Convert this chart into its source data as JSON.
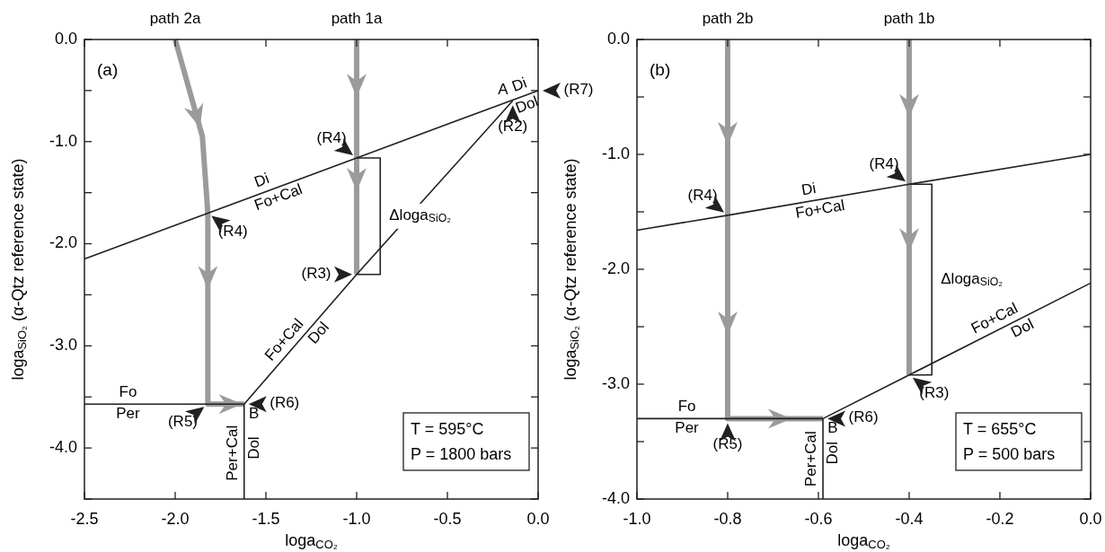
{
  "chart_data": [
    {
      "type": "line",
      "xlabel": "loga$_{CO₂}$",
      "ylabel": "loga$_{SiO₂}$ (α-Qtz reference state)",
      "xlim": [
        -2.5,
        0
      ],
      "ylim": [
        -4.5,
        0
      ],
      "xticks": [
        {
          "value": -2.5,
          "label": "-2.5"
        },
        {
          "value": -2,
          "label": "-2.0"
        },
        {
          "value": -1.5,
          "label": "-1.5"
        },
        {
          "value": -1,
          "label": "-1.0"
        },
        {
          "value": -0.5,
          "label": "-0.5"
        },
        {
          "value": 0,
          "label": "0.0"
        }
      ],
      "yticks": [
        {
          "value": 0,
          "label": "0.0"
        },
        {
          "value": -0.5,
          "label": null
        },
        {
          "value": -1,
          "label": "-1.0"
        },
        {
          "value": -1.5,
          "label": null
        },
        {
          "value": -2,
          "label": "-2.0"
        },
        {
          "value": -2.5,
          "label": null
        },
        {
          "value": -3,
          "label": "-3.0"
        },
        {
          "value": -3.5,
          "label": null
        },
        {
          "value": -4,
          "label": "-4.0"
        },
        {
          "value": -4.5,
          "label": null
        }
      ],
      "series": [
        {
          "color": "#231f20",
          "x": [
            -2.5,
            -1.82,
            -1.0,
            0.0
          ],
          "values": [
            -2.15,
            -1.7,
            -1.16,
            -0.5
          ]
        },
        {
          "color": "#231f20",
          "x": [
            -1.62,
            -1.0,
            -0.14
          ],
          "values": [
            -3.57,
            -2.3,
            -0.6
          ]
        },
        {
          "color": "#231f20",
          "x": [
            -2.5,
            -1.62
          ],
          "values": [
            -3.57,
            -3.57
          ]
        },
        {
          "color": "#231f20",
          "x": [
            -1.62,
            -1.62
          ],
          "values": [
            -3.57,
            -4.5
          ]
        },
        {
          "color": "#9a9b9d",
          "x": [
            -1.0,
            -1.0,
            -1.0
          ],
          "values": [
            0,
            -1.16,
            -2.3
          ]
        },
        {
          "color": "#9a9b9d",
          "x": [
            -2.0,
            -1.85,
            -1.82,
            -1.82,
            -1.62
          ],
          "values": [
            0,
            -0.95,
            -1.7,
            -3.57,
            -3.57
          ]
        },
        {
          "color": "#231f20",
          "x": [
            -1.0,
            -0.87,
            -0.87,
            -1.0
          ],
          "values": [
            -1.16,
            -1.16,
            -2.3,
            -2.3
          ]
        }
      ],
      "annotations": [
        "(a)",
        "T = 595°C",
        "P = 1800 bars",
        {
          "text": "path 2a",
          "x": -2.0
        },
        {
          "text": "path 1a",
          "x": -1.0
        },
        {
          "text": "(R2)",
          "x": -0.14,
          "y": -0.6
        },
        {
          "text": "A",
          "x": -0.14,
          "y": -0.6
        },
        {
          "text": "Di",
          "x": -0.08,
          "y": -0.553
        },
        {
          "text": "Dol",
          "x": -0.08,
          "y": -0.553
        },
        {
          "text": "(R7)",
          "x": 0.0,
          "y": -0.5
        },
        {
          "text": "(R4)",
          "x": -1.0,
          "y": -1.16
        },
        {
          "text": "(R4)",
          "x": -1.82,
          "y": -1.7
        },
        {
          "text": "(R3)",
          "x": -1.0,
          "y": -2.3
        },
        {
          "text": "(R5)",
          "x": -1.82,
          "y": -3.57
        },
        {
          "text": "(R6)",
          "x": -1.62,
          "y": -3.57
        },
        {
          "text": "Di",
          "x": -1.5,
          "y": -1.49
        },
        {
          "text": "Fo+Cal",
          "x": -1.45,
          "y": -1.457
        },
        {
          "text": "Fo+Cal",
          "x": -1.35,
          "y": -3.017
        },
        {
          "text": "Dol",
          "x": -1.25,
          "y": -2.812
        },
        {
          "text": "Fo",
          "x": -2.26,
          "y": -3.57
        },
        {
          "text": "Per",
          "x": -2.26,
          "y": -3.57
        },
        {
          "text": "Per+Cal",
          "x": -1.62,
          "y": -4.05
        },
        {
          "text": "Dol",
          "x": -1.62,
          "y": -4.0
        },
        {
          "text": "B",
          "x": -1.62,
          "y": -3.57
        },
        {
          "text": "Δloga$_{SiO₂}$",
          "x": -0.87,
          "y": -1.73
        }
      ]
    },
    {
      "type": "line",
      "xlabel": "loga$_{CO₂}$",
      "ylabel": "loga$_{SiO₂}$ (α-Qtz reference state)",
      "xlim": [
        -1,
        0
      ],
      "ylim": [
        -4,
        0
      ],
      "xticks": [
        {
          "value": -1,
          "label": "-1.0"
        },
        {
          "value": -0.8,
          "label": "-0.8"
        },
        {
          "value": -0.6,
          "label": "-0.6"
        },
        {
          "value": -0.4,
          "label": "-0.4"
        },
        {
          "value": -0.2,
          "label": "-0.2"
        },
        {
          "value": 0,
          "label": "0.0"
        }
      ],
      "yticks": [
        {
          "value": 0,
          "label": "0.0"
        },
        {
          "value": -0.5,
          "label": null
        },
        {
          "value": -1,
          "label": "-1.0"
        },
        {
          "value": -1.5,
          "label": null
        },
        {
          "value": -2,
          "label": "-2.0"
        },
        {
          "value": -2.5,
          "label": null
        },
        {
          "value": -3,
          "label": "-3.0"
        },
        {
          "value": -3.5,
          "label": null
        },
        {
          "value": -4,
          "label": "-4.0"
        }
      ],
      "series": [
        {
          "color": "#231f20",
          "x": [
            -1.0,
            -0.8,
            -0.4,
            0.0
          ],
          "values": [
            -1.66,
            -1.53,
            -1.26,
            -1.0
          ]
        },
        {
          "color": "#231f20",
          "x": [
            -0.59,
            -0.4,
            0.0
          ],
          "values": [
            -3.3,
            -2.92,
            -2.12
          ]
        },
        {
          "color": "#231f20",
          "x": [
            -1.0,
            -0.59
          ],
          "values": [
            -3.3,
            -3.3
          ]
        },
        {
          "color": "#231f20",
          "x": [
            -0.59,
            -0.59
          ],
          "values": [
            -3.3,
            -4.0
          ]
        },
        {
          "color": "#9a9b9d",
          "x": [
            -0.4,
            -0.4,
            -0.4
          ],
          "values": [
            0,
            -1.26,
            -2.92
          ]
        },
        {
          "color": "#9a9b9d",
          "x": [
            -0.8,
            -0.8,
            -0.8,
            -0.59
          ],
          "values": [
            0,
            -1.53,
            -3.3,
            -3.3
          ]
        },
        {
          "color": "#231f20",
          "x": [
            -0.4,
            -0.35,
            -0.35,
            -0.4
          ],
          "values": [
            -1.26,
            -1.26,
            -2.92,
            -2.92
          ]
        }
      ],
      "annotations": [
        "(b)",
        "T = 655°C",
        "P = 500 bars",
        {
          "text": "path 2b",
          "x": -0.8
        },
        {
          "text": "path 1b",
          "x": -0.4
        },
        {
          "text": "(R4)",
          "x": -0.8,
          "y": -1.53
        },
        {
          "text": "(R4)",
          "x": -0.4,
          "y": -1.26
        },
        {
          "text": "(R3)",
          "x": -0.4,
          "y": -2.92
        },
        {
          "text": "(R5)",
          "x": -0.8,
          "y": -3.3
        },
        {
          "text": "(R6)",
          "x": -0.59,
          "y": -3.3
        },
        {
          "text": "Di",
          "x": -0.617,
          "y": -1.407
        },
        {
          "text": "Fo+Cal",
          "x": -0.6,
          "y": -1.396
        },
        {
          "text": "Fo+Cal",
          "x": -0.2,
          "y": -2.52
        },
        {
          "text": "Dol",
          "x": -0.16,
          "y": -2.44
        },
        {
          "text": "Fo",
          "x": -0.89,
          "y": -3.3
        },
        {
          "text": "Per",
          "x": -0.89,
          "y": -3.3
        },
        {
          "text": "Per+Cal",
          "x": -0.59,
          "y": -3.65
        },
        {
          "text": "Dol",
          "x": -0.59,
          "y": -3.6
        },
        {
          "text": "B",
          "x": -0.59,
          "y": -3.3
        },
        {
          "text": "Δloga$_{SiO₂}$",
          "x": -0.35,
          "y": -2.09
        }
      ]
    }
  ]
}
